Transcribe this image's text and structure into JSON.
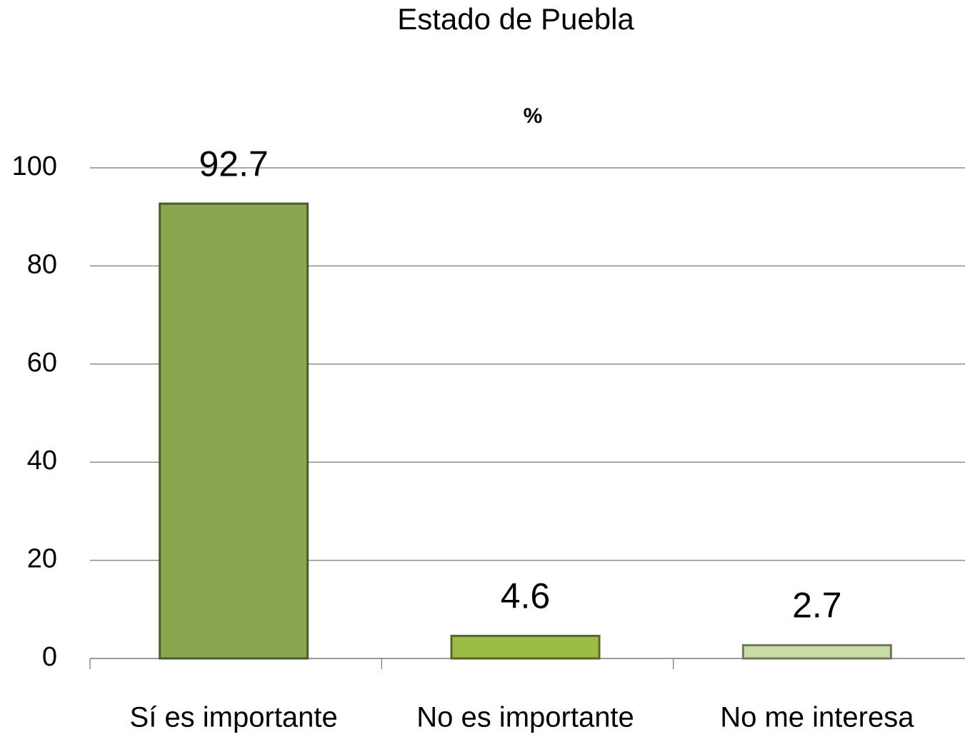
{
  "chart_data": {
    "type": "bar",
    "title": "Estado de Puebla",
    "subtitle": "%",
    "categories": [
      "Sí es importante",
      "No es importante",
      "No me interesa"
    ],
    "values": [
      92.7,
      4.6,
      2.7
    ],
    "colors": [
      "#8aa64f",
      "#9dbc47",
      "#c9dba6"
    ],
    "ylim": [
      0,
      100
    ],
    "yticks": [
      0,
      20,
      40,
      60,
      80,
      100
    ],
    "grid": true
  }
}
